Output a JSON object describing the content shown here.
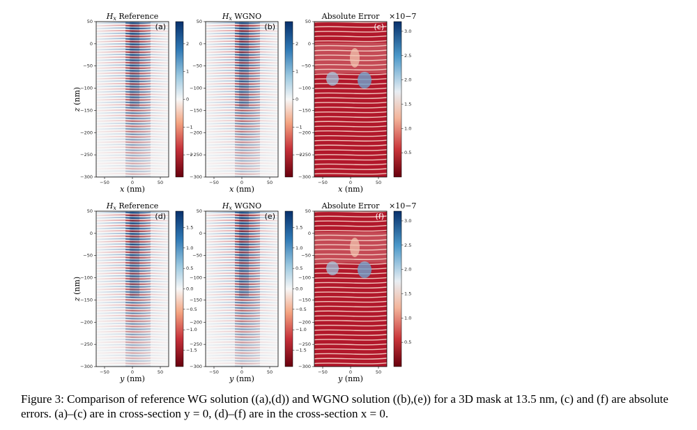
{
  "figure": {
    "panels": [
      {
        "id": "a",
        "title": "H_x Reference",
        "title_var": "H",
        "title_sub": "x",
        "title_rest": " Reference",
        "letter": "(a)",
        "kind": "field",
        "xlabel_var": "x",
        "xlabel_unit": " (nm)",
        "show_ylabel": true,
        "colorbar": {
          "ticks": [
            "2",
            "1",
            "0",
            "−1",
            "−2"
          ],
          "tick_values": [
            2,
            1,
            0,
            -1,
            -2
          ],
          "range": [
            -2.8,
            2.8
          ],
          "exponent": ""
        }
      },
      {
        "id": "b",
        "title": "H_x WGNO",
        "title_var": "H",
        "title_sub": "x",
        "title_rest": " WGNO",
        "letter": "(b)",
        "kind": "field",
        "xlabel_var": "x",
        "xlabel_unit": " (nm)",
        "show_ylabel": false,
        "colorbar": {
          "ticks": [
            "2",
            "1",
            "0",
            "−1",
            "−2"
          ],
          "tick_values": [
            2,
            1,
            0,
            -1,
            -2
          ],
          "range": [
            -2.8,
            2.8
          ],
          "exponent": ""
        }
      },
      {
        "id": "c",
        "title": "Absolute Error",
        "title_var": "",
        "title_sub": "",
        "title_rest": "Absolute Error",
        "letter": "(c)",
        "kind": "error",
        "xlabel_var": "x",
        "xlabel_unit": " (nm)",
        "show_ylabel": false,
        "colorbar": {
          "ticks": [
            "3.0",
            "2.5",
            "2.0",
            "1.5",
            "1.0",
            "0.5"
          ],
          "tick_values": [
            3.0,
            2.5,
            2.0,
            1.5,
            1.0,
            0.5
          ],
          "range": [
            0,
            3.2
          ],
          "exponent": "×10−7"
        }
      },
      {
        "id": "d",
        "title": "H_x Reference",
        "title_var": "H",
        "title_sub": "x",
        "title_rest": " Reference",
        "letter": "(d)",
        "kind": "field",
        "xlabel_var": "y",
        "xlabel_unit": " (nm)",
        "show_ylabel": true,
        "colorbar": {
          "ticks": [
            "1.5",
            "1.0",
            "0.5",
            "0.0",
            "−0.5",
            "−1.0",
            "−1.5"
          ],
          "tick_values": [
            1.5,
            1.0,
            0.5,
            0.0,
            -0.5,
            -1.0,
            -1.5
          ],
          "range": [
            -1.9,
            1.9
          ],
          "exponent": ""
        }
      },
      {
        "id": "e",
        "title": "H_x WGNO",
        "title_var": "H",
        "title_sub": "x",
        "title_rest": " WGNO",
        "letter": "(e)",
        "kind": "field",
        "xlabel_var": "y",
        "xlabel_unit": " (nm)",
        "show_ylabel": false,
        "colorbar": {
          "ticks": [
            "1.5",
            "1.0",
            "0.5",
            "0.0",
            "−0.5",
            "−1.0",
            "−1.5"
          ],
          "tick_values": [
            1.5,
            1.0,
            0.5,
            0.0,
            -0.5,
            -1.0,
            -1.5
          ],
          "range": [
            -1.9,
            1.9
          ],
          "exponent": ""
        }
      },
      {
        "id": "f",
        "title": "Absolute Error",
        "title_var": "",
        "title_sub": "",
        "title_rest": "Absolute Error",
        "letter": "(f)",
        "kind": "error",
        "xlabel_var": "y",
        "xlabel_unit": " (nm)",
        "show_ylabel": false,
        "colorbar": {
          "ticks": [
            "3.0",
            "2.5",
            "2.0",
            "1.5",
            "1.0",
            "0.5"
          ],
          "tick_values": [
            3.0,
            2.5,
            2.0,
            1.5,
            1.0,
            0.5
          ],
          "range": [
            0,
            3.2
          ],
          "exponent": "×10−7"
        }
      }
    ],
    "x_ticks": [
      -50,
      0,
      50
    ],
    "x_range": [
      -65,
      65
    ],
    "y_ticks": [
      50,
      0,
      -50,
      -100,
      -150,
      -200,
      -250,
      -300
    ],
    "y_range": [
      -300,
      50
    ],
    "ylabel_var": "z",
    "ylabel_unit": " (nm)",
    "colors": {
      "positive": "#08306b",
      "negative": "#67000d",
      "background": "#f7f7f7",
      "error_low": "#a50f15",
      "error_high": "#2166ac"
    }
  },
  "caption": {
    "label": "Figure 3:",
    "text": "Comparison of reference WG solution ((a),(d)) and WGNO solution ((b),(e)) for a 3D mask at 13.5 nm, (c) and (f) are absolute errors. (a)–(c) are in cross-section y = 0, (d)–(f) are in the cross-section x = 0."
  }
}
